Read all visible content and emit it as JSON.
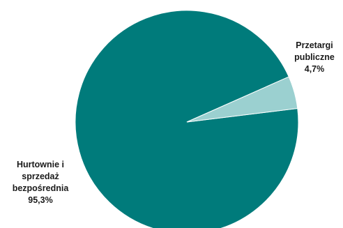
{
  "chart_data": {
    "type": "pie",
    "title": "",
    "slices": [
      {
        "label_lines": [
          "Hurtownie i",
          "sprzedaż",
          "bezpośrednia"
        ],
        "value": 95.3,
        "value_label": "95,3%",
        "color": "#007b7b"
      },
      {
        "label_lines": [
          "Przetargi",
          "publiczne"
        ],
        "value": 4.7,
        "value_label": "4,7%",
        "color": "#9bd0d0"
      }
    ],
    "legend": false
  }
}
